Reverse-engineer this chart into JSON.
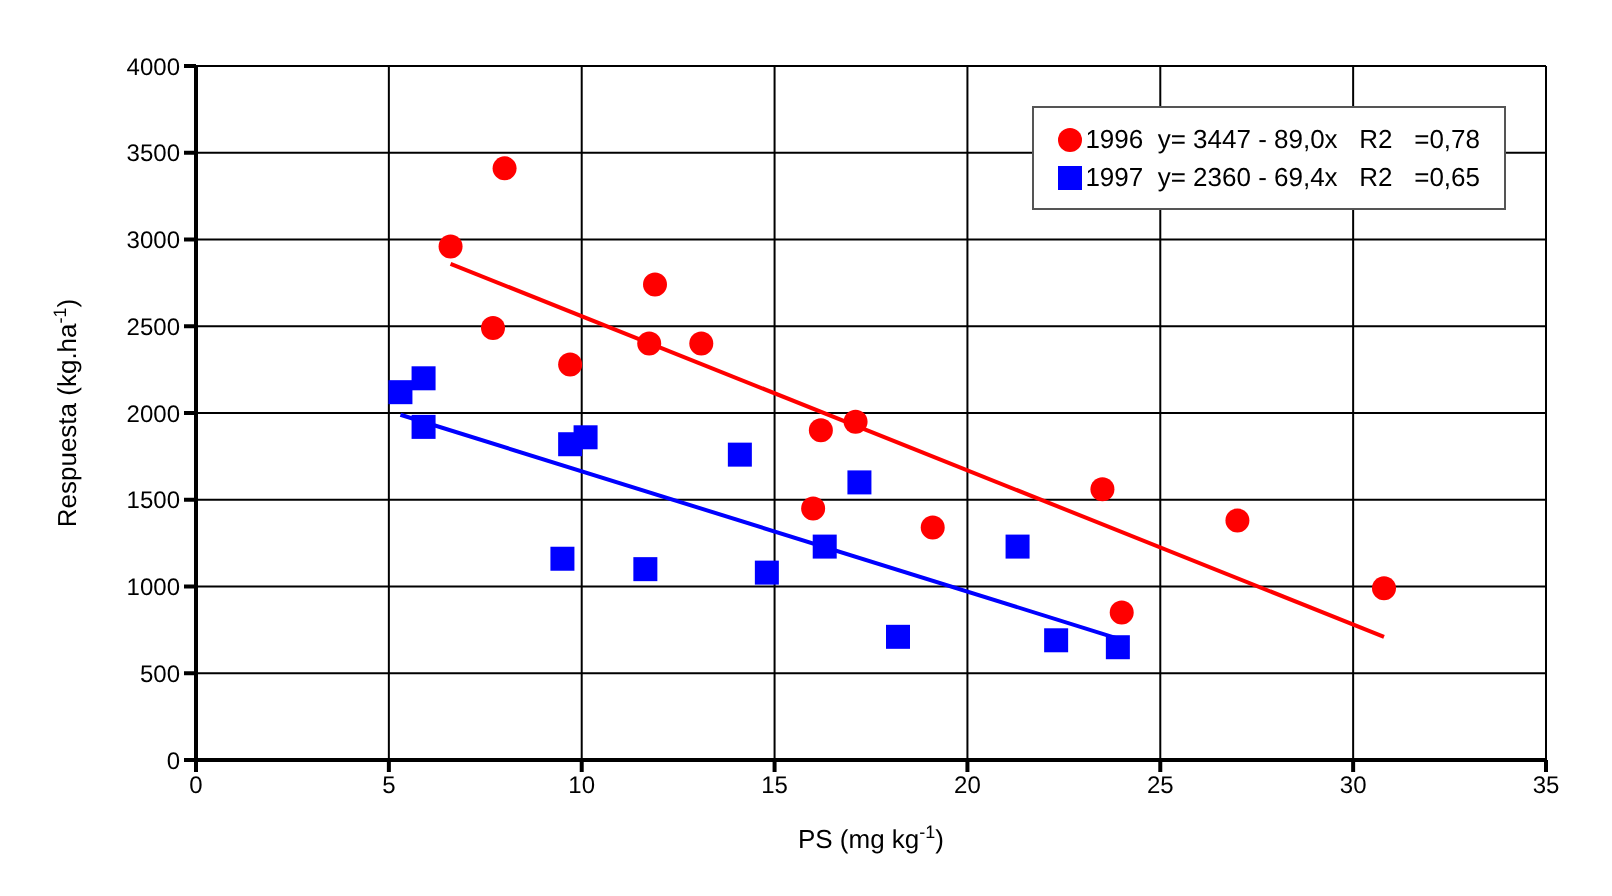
{
  "chart_data": {
    "type": "scatter",
    "xlabel": "PS (mg kg$^{-1}$)",
    "ylabel": "Respuesta (kg.ha$^{-1}$)",
    "xlim": [
      0,
      35
    ],
    "xticks": [
      0,
      5,
      10,
      15,
      20,
      25,
      30,
      35
    ],
    "ylim": [
      0,
      4000
    ],
    "yticks": [
      0,
      500,
      1000,
      1500,
      2000,
      2500,
      3000,
      3500,
      4000
    ],
    "grid": true,
    "legend": "top right",
    "series": [
      {
        "name": "1996  y= 3447 - 89,0x   R2   =0,78",
        "marker": "circle",
        "color": "#ff0000",
        "x": [
          8.0,
          6.6,
          7.7,
          9.7,
          11.9,
          11.75,
          13.1,
          16.2,
          17.1,
          16.0,
          19.1,
          23.5,
          27.0,
          30.8,
          24.0
        ],
        "values": [
          3410,
          2960,
          2490,
          2280,
          2740,
          2400,
          2400,
          1900,
          1950,
          1450,
          1340,
          1560,
          1380,
          990,
          850
        ]
      },
      {
        "name": "1997  y= 2360 - 69,4x   R2   =0,65",
        "marker": "square",
        "color": "#0000ff",
        "x": [
          5.3,
          5.9,
          5.9,
          9.7,
          10.1,
          14.1,
          17.2,
          9.5,
          11.65,
          14.8,
          16.3,
          21.3,
          18.2,
          22.3,
          23.9
        ],
        "values": [
          2120,
          2200,
          1920,
          1820,
          1860,
          1760,
          1600,
          1160,
          1100,
          1080,
          1230,
          1230,
          710,
          690,
          650
        ]
      },
      {
        "type": "line",
        "color": "#ff0000",
        "x": [
          6.6,
          30.8
        ],
        "values": [
          2860,
          710
        ]
      },
      {
        "type": "line",
        "color": "#0000ff",
        "x": [
          5.3,
          23.9
        ],
        "values": [
          1990,
          700
        ]
      }
    ]
  }
}
